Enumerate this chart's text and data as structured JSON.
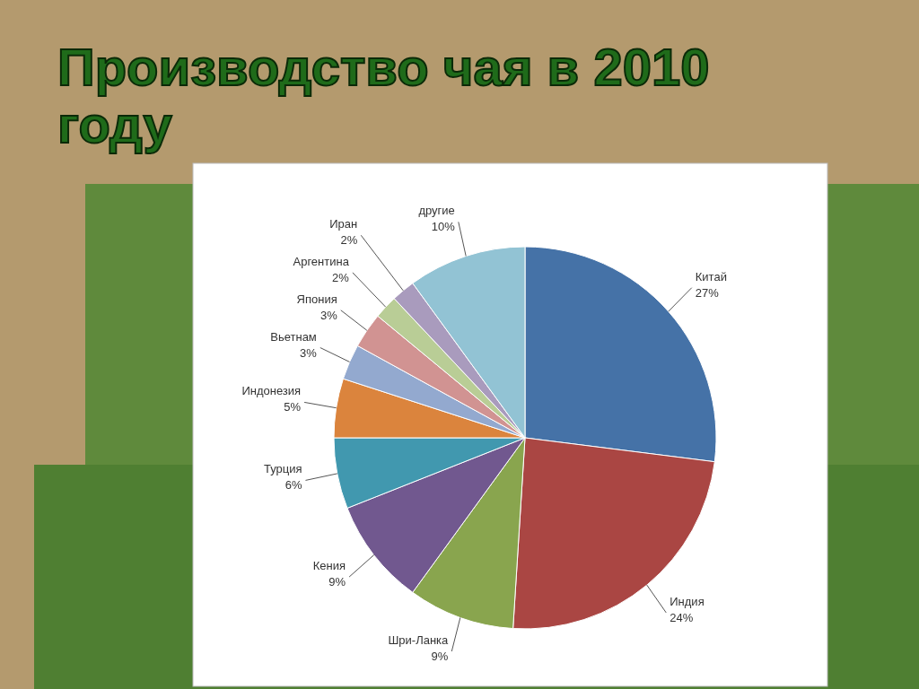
{
  "chart_data": {
    "type": "pie",
    "title": "Производство чая в 2010 году",
    "categories": [
      "Китай",
      "Индия",
      "Шри-Ланка",
      "Кения",
      "Турция",
      "Индонезия",
      "Вьетнам",
      "Япония",
      "Аргентина",
      "Иран",
      "другие"
    ],
    "values": [
      27,
      24,
      9,
      9,
      6,
      5,
      3,
      3,
      2,
      2,
      10
    ],
    "colors": [
      "#4572a7",
      "#aa4643",
      "#89a54e",
      "#71588f",
      "#4198af",
      "#db843d",
      "#93a9cf",
      "#d19392",
      "#b9cd96",
      "#a99bbd",
      "#92c3d4"
    ],
    "value_labels": [
      "27%",
      "24%",
      "9%",
      "9%",
      "6%",
      "5%",
      "3%",
      "3%",
      "2%",
      "2%",
      "10%"
    ],
    "legend": false
  }
}
